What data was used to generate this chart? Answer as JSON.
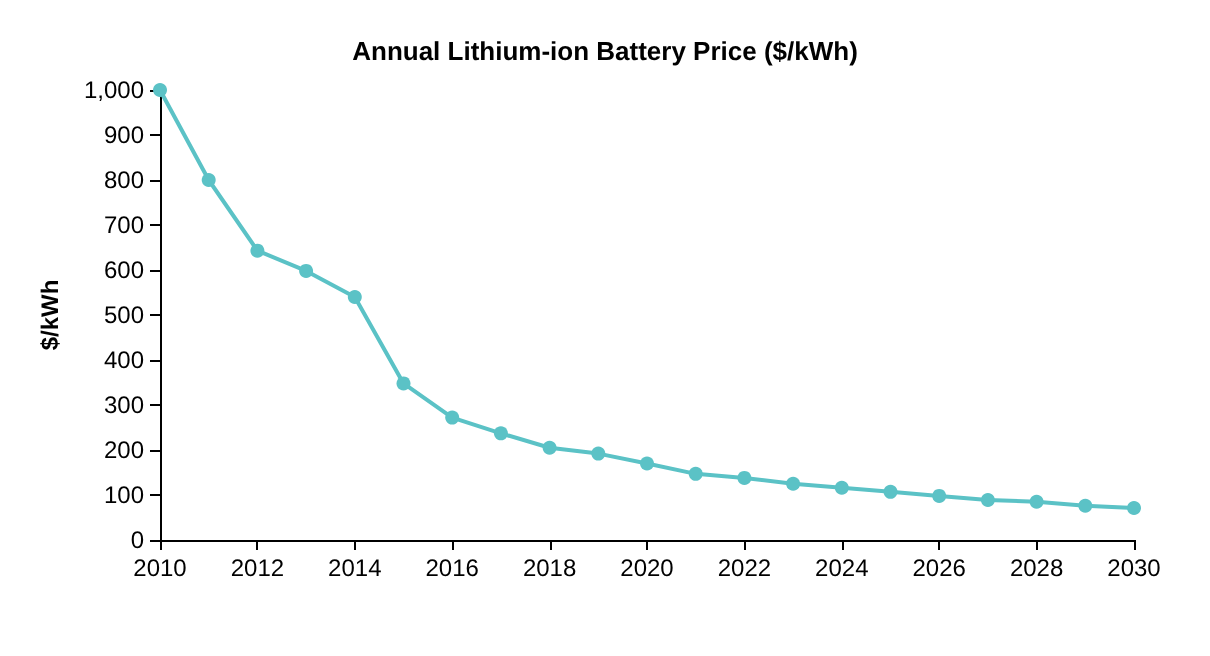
{
  "chart_data": {
    "type": "line",
    "title": "Annual Lithium-ion Battery Price ($/kWh)",
    "ylabel": "$/kWh",
    "x": [
      2010,
      2011,
      2012,
      2013,
      2014,
      2015,
      2016,
      2017,
      2018,
      2019,
      2020,
      2021,
      2022,
      2023,
      2024,
      2025,
      2026,
      2027,
      2028,
      2029,
      2030
    ],
    "series": [
      {
        "color": "#5bc2c6",
        "values": [
          1000,
          800,
          643,
          598,
          540,
          348,
          272,
          237,
          205,
          192,
          170,
          147,
          138,
          125,
          116,
          107,
          98,
          89,
          85,
          76,
          71
        ]
      }
    ],
    "xlim": [
      2010,
      2030
    ],
    "xticks": [
      2010,
      2012,
      2014,
      2016,
      2018,
      2020,
      2022,
      2024,
      2026,
      2028,
      2030
    ],
    "ylim": [
      0,
      1000
    ],
    "yticks": [
      0,
      100,
      200,
      300,
      400,
      500,
      600,
      700,
      800,
      900,
      {
        "value": 1000,
        "label": "1,000"
      }
    ],
    "grid": false,
    "marker": "circle",
    "line_style": "solid"
  }
}
